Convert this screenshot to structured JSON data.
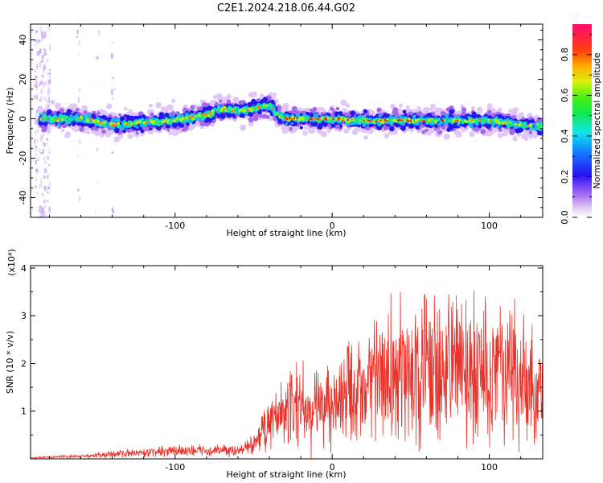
{
  "title": "C2E1.2024.218.06.44.G02",
  "chart_data": [
    {
      "type": "heatmap",
      "xlabel": "Height of straight line (km)",
      "ylabel": "Frequency (Hz)",
      "xlim": [
        -192,
        134
      ],
      "ylim": [
        -50,
        48
      ],
      "xticks": [
        -100,
        0,
        100
      ],
      "xtick_labels": [
        "-100",
        "0",
        "100"
      ],
      "yticks": [
        -40,
        -20,
        0,
        20,
        40
      ],
      "ytick_labels": [
        "-40",
        "-20",
        "0",
        "20",
        "40"
      ],
      "colorbar": {
        "label": "Normalized spectral amplitude",
        "range": [
          0,
          0.95
        ],
        "ticks": [
          0.0,
          0.2,
          0.4,
          0.6,
          0.8
        ],
        "tick_labels": [
          "0.0",
          "0.2",
          "0.4",
          "0.6",
          "0.8"
        ]
      },
      "ridge": {
        "x": [
          -180,
          -160,
          -140,
          -120,
          -100,
          -80,
          -70,
          -60,
          -50,
          -45,
          -40,
          -35,
          -30,
          -20,
          0,
          20,
          40,
          60,
          80,
          100,
          110,
          120,
          134
        ],
        "y": [
          0,
          0,
          -3,
          -2,
          -1,
          2,
          5,
          4,
          5,
          6,
          7,
          2,
          0,
          0,
          0,
          -1,
          -1,
          -1,
          -1,
          -1,
          -2,
          -3,
          -4
        ]
      }
    },
    {
      "type": "line",
      "xlabel": "Height of straight line (km)",
      "ylabel": "SNR (10 * v/v)",
      "multiplier_label": "(x10⁴)",
      "xlim": [
        -192,
        134
      ],
      "ylim": [
        0,
        4.05
      ],
      "xticks": [
        -100,
        0,
        100
      ],
      "xtick_labels": [
        "-100",
        "0",
        "100"
      ],
      "yticks": [
        1,
        2,
        3,
        4
      ],
      "ytick_labels": [
        "1",
        "2",
        "3",
        "4"
      ],
      "series": [
        {
          "color": "#e8322a",
          "x": [
            -192,
            -170,
            -150,
            -130,
            -110,
            -100,
            -90,
            -80,
            -70,
            -60,
            -50,
            -40,
            -35,
            -30,
            -20,
            -10,
            0,
            10,
            20,
            30,
            40,
            50,
            60,
            70,
            80,
            90,
            100,
            110,
            120,
            134
          ],
          "y": [
            0.02,
            0.05,
            0.07,
            0.12,
            0.15,
            0.18,
            0.18,
            0.16,
            0.2,
            0.18,
            0.3,
            0.7,
            0.8,
            0.95,
            1.05,
            1.15,
            1.25,
            1.4,
            1.55,
            1.7,
            1.8,
            1.85,
            1.9,
            1.9,
            1.95,
            1.9,
            1.85,
            1.8,
            1.7,
            1.6
          ]
        }
      ]
    }
  ]
}
